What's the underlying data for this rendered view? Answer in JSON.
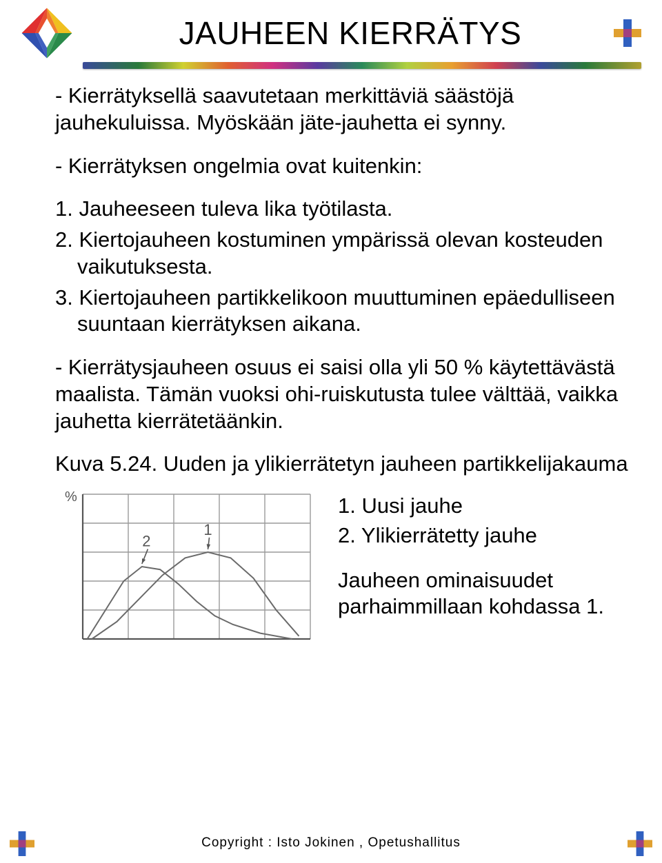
{
  "title": "JAUHEEN KIERRÄTYS",
  "paragraphs": {
    "p1": "- Kierrätyksellä saavutetaan merkittäviä säästöjä jauhekuluissa. Myöskään jäte-jauhetta ei synny.",
    "p2": "- Kierrätyksen ongelmia ovat kuitenkin:",
    "p3": "- Kierrätysjauheen osuus ei saisi olla yli 50 % käytettävästä maalista. Tämän vuoksi ohi-ruiskutusta tulee välttää, vaikka jauhetta kierrätetäänkin."
  },
  "list": {
    "i1": "1. Jauheeseen tuleva lika työtilasta.",
    "i2": "2. Kiertojauheen kostuminen ympärissä olevan kosteuden vaikutuksesta.",
    "i3": "3. Kiertojauheen partikkelikoon muuttuminen epäedulliseen suuntaan kierrätyksen aikana."
  },
  "caption": "Kuva 5.24. Uuden ja ylikierrätetyn jauheen partikkelijakauma",
  "legend": {
    "l1": "1. Uusi jauhe",
    "l2": "2. Ylikierrätetty jauhe",
    "note": "Jauheen ominaisuudet parhaimmillaan kohdassa 1."
  },
  "footer": "Copyright : Isto Jokinen , Opetushallitus",
  "chart": {
    "type": "line",
    "ylabel": "%",
    "grid_color": "#9a9a9a",
    "background_color": "#ffffff",
    "line_color": "#6a6a6a",
    "line_width": 2,
    "grid_rows": 5,
    "grid_cols": 5,
    "series": [
      {
        "label": "1",
        "points": [
          [
            0.04,
            1.0
          ],
          [
            0.15,
            0.88
          ],
          [
            0.25,
            0.72
          ],
          [
            0.35,
            0.56
          ],
          [
            0.45,
            0.44
          ],
          [
            0.55,
            0.4
          ],
          [
            0.65,
            0.44
          ],
          [
            0.75,
            0.58
          ],
          [
            0.85,
            0.8
          ],
          [
            0.95,
            0.98
          ]
        ],
        "marker_x": 0.55,
        "marker_y": 0.28
      },
      {
        "label": "2",
        "points": [
          [
            0.02,
            1.0
          ],
          [
            0.1,
            0.8
          ],
          [
            0.18,
            0.6
          ],
          [
            0.26,
            0.5
          ],
          [
            0.34,
            0.52
          ],
          [
            0.42,
            0.62
          ],
          [
            0.5,
            0.74
          ],
          [
            0.58,
            0.84
          ],
          [
            0.66,
            0.9
          ],
          [
            0.78,
            0.96
          ],
          [
            0.92,
            1.0
          ]
        ],
        "marker_x": 0.28,
        "marker_y": 0.36
      }
    ]
  },
  "colors": {
    "text": "#000000",
    "bg": "#ffffff"
  },
  "logo_colors": {
    "top": "#e03030",
    "right": "#f0c020",
    "bottom": "#2a8a4a",
    "left": "#3050b0",
    "center": "#ffffff"
  }
}
